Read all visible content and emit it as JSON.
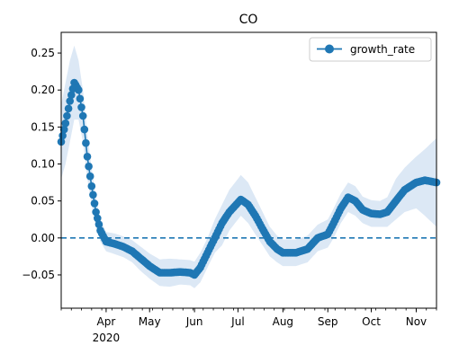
{
  "chart_data": {
    "type": "line",
    "title": "CO",
    "xlabel": "",
    "ylabel": "",
    "x_range": [
      "2020-03-01",
      "2020-11-15"
    ],
    "ylim": [
      -0.095,
      0.278
    ],
    "x_tick_labels": [
      {
        "date": "2020-04-01",
        "label": "Apr"
      },
      {
        "date": "2020-05-01",
        "label": "May"
      },
      {
        "date": "2020-06-01",
        "label": "Jun"
      },
      {
        "date": "2020-07-01",
        "label": "Jul"
      },
      {
        "date": "2020-08-01",
        "label": "Aug"
      },
      {
        "date": "2020-09-01",
        "label": "Sep"
      },
      {
        "date": "2020-10-01",
        "label": "Oct"
      },
      {
        "date": "2020-11-01",
        "label": "Nov"
      }
    ],
    "x_year_label": "2020",
    "y_ticks": [
      -0.05,
      0.0,
      0.05,
      0.1,
      0.15,
      0.2,
      0.25
    ],
    "y_tick_labels": [
      "−0.05",
      "0.00",
      "0.05",
      "0.10",
      "0.15",
      "0.20",
      "0.25"
    ],
    "reference_line": {
      "y": 0.0,
      "style": "dashed"
    },
    "grid": false,
    "legend": {
      "placement": "top-right",
      "entries": [
        "growth_rate"
      ]
    },
    "series": [
      {
        "name": "growth_rate",
        "color": "#1f77b4",
        "band_color": "#dce8f5",
        "marker": "circle",
        "points": [
          [
            "2020-03-01",
            0.13,
            0.08,
            0.18
          ],
          [
            "2020-03-04",
            0.155,
            0.1,
            0.21
          ],
          [
            "2020-03-07",
            0.185,
            0.13,
            0.24
          ],
          [
            "2020-03-10",
            0.21,
            0.16,
            0.26
          ],
          [
            "2020-03-13",
            0.2,
            0.16,
            0.24
          ],
          [
            "2020-03-16",
            0.165,
            0.13,
            0.2
          ],
          [
            "2020-03-19",
            0.11,
            0.08,
            0.14
          ],
          [
            "2020-03-22",
            0.07,
            0.045,
            0.095
          ],
          [
            "2020-03-25",
            0.035,
            0.015,
            0.055
          ],
          [
            "2020-03-28",
            0.01,
            -0.005,
            0.025
          ],
          [
            "2020-04-01",
            -0.005,
            -0.018,
            0.008
          ],
          [
            "2020-04-07",
            -0.008,
            -0.022,
            0.006
          ],
          [
            "2020-04-13",
            -0.012,
            -0.026,
            0.002
          ],
          [
            "2020-04-19",
            -0.018,
            -0.033,
            -0.003
          ],
          [
            "2020-04-25",
            -0.028,
            -0.045,
            -0.012
          ],
          [
            "2020-05-01",
            -0.038,
            -0.055,
            -0.021
          ],
          [
            "2020-05-08",
            -0.047,
            -0.065,
            -0.029
          ],
          [
            "2020-05-15",
            -0.047,
            -0.066,
            -0.028
          ],
          [
            "2020-05-22",
            -0.046,
            -0.063,
            -0.029
          ],
          [
            "2020-05-29",
            -0.047,
            -0.064,
            -0.03
          ],
          [
            "2020-06-01",
            -0.05,
            -0.068,
            -0.032
          ],
          [
            "2020-06-05",
            -0.04,
            -0.06,
            -0.02
          ],
          [
            "2020-06-10",
            -0.02,
            -0.04,
            0.0
          ],
          [
            "2020-06-15",
            0.0,
            -0.02,
            0.025
          ],
          [
            "2020-06-20",
            0.02,
            -0.01,
            0.045
          ],
          [
            "2020-06-25",
            0.035,
            0.01,
            0.065
          ],
          [
            "2020-07-03",
            0.052,
            0.03,
            0.085
          ],
          [
            "2020-07-08",
            0.045,
            0.02,
            0.075
          ],
          [
            "2020-07-13",
            0.03,
            0.005,
            0.055
          ],
          [
            "2020-07-18",
            0.012,
            -0.01,
            0.035
          ],
          [
            "2020-07-23",
            -0.005,
            -0.025,
            0.015
          ],
          [
            "2020-07-28",
            -0.015,
            -0.033,
            0.003
          ],
          [
            "2020-08-01",
            -0.02,
            -0.038,
            -0.002
          ],
          [
            "2020-08-10",
            -0.02,
            -0.038,
            -0.002
          ],
          [
            "2020-08-18",
            -0.015,
            -0.033,
            0.003
          ],
          [
            "2020-08-25",
            0.0,
            -0.018,
            0.018
          ],
          [
            "2020-09-01",
            0.005,
            -0.013,
            0.025
          ],
          [
            "2020-09-05",
            0.02,
            0.0,
            0.04
          ],
          [
            "2020-09-10",
            0.04,
            0.02,
            0.06
          ],
          [
            "2020-09-15",
            0.055,
            0.035,
            0.075
          ],
          [
            "2020-09-20",
            0.05,
            0.03,
            0.07
          ],
          [
            "2020-09-25",
            0.038,
            0.02,
            0.056
          ],
          [
            "2020-10-01",
            0.033,
            0.015,
            0.051
          ],
          [
            "2020-10-07",
            0.032,
            0.015,
            0.05
          ],
          [
            "2020-10-12",
            0.035,
            0.015,
            0.055
          ],
          [
            "2020-10-18",
            0.05,
            0.025,
            0.08
          ],
          [
            "2020-10-24",
            0.065,
            0.035,
            0.095
          ],
          [
            "2020-11-01",
            0.075,
            0.04,
            0.11
          ],
          [
            "2020-11-07",
            0.078,
            0.03,
            0.12
          ],
          [
            "2020-11-15",
            0.075,
            0.015,
            0.135
          ]
        ]
      }
    ]
  }
}
